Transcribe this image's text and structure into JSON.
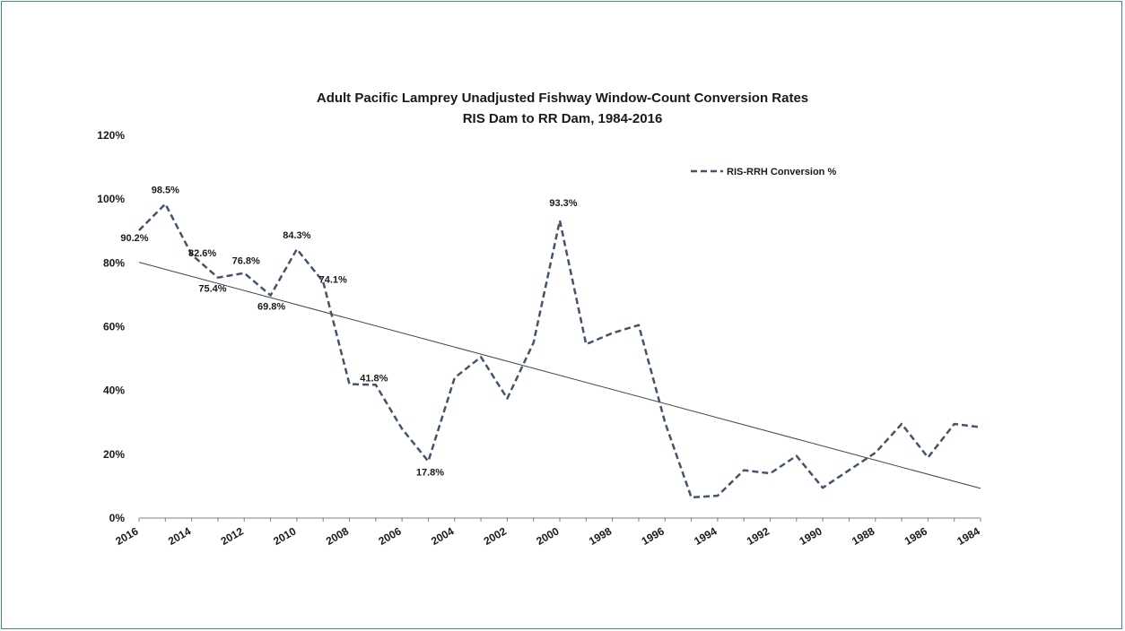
{
  "chart_data": {
    "type": "line",
    "title": "Adult Pacific Lamprey Unadjusted Fishway Window-Count Conversion Rates",
    "subtitle": "RIS Dam to RR Dam, 1984-2016",
    "x": [
      2016,
      2015,
      2014,
      2013,
      2012,
      2011,
      2010,
      2009,
      2008,
      2007,
      2006,
      2005,
      2004,
      2003,
      2002,
      2001,
      2000,
      1999,
      1998,
      1997,
      1996,
      1995,
      1994,
      1993,
      1992,
      1991,
      1990,
      1989,
      1988,
      1987,
      1986,
      1985,
      1984
    ],
    "x_tick_labels": [
      "2016",
      "2014",
      "2012",
      "2010",
      "2008",
      "2006",
      "2004",
      "2002",
      "2000",
      "1998",
      "1996",
      "1994",
      "1992",
      "1990",
      "1988",
      "1986",
      "1984"
    ],
    "x_reversed": true,
    "ylim": [
      0,
      120
    ],
    "y_tick_labels": [
      "0%",
      "20%",
      "40%",
      "60%",
      "80%",
      "100%",
      "120%"
    ],
    "series": [
      {
        "name": "RIS-RRH Conversion %",
        "style": "dashed",
        "color": "#44546a",
        "values": [
          90.2,
          98.5,
          82.6,
          75.4,
          76.8,
          69.8,
          84.3,
          74.1,
          42,
          41.8,
          28,
          17.8,
          44,
          50.5,
          37.5,
          55,
          93.3,
          54.5,
          58,
          60.5,
          30,
          6.5,
          7,
          15,
          14,
          19.5,
          9.5,
          15,
          20.5,
          29.5,
          19,
          29.5,
          28.5
        ]
      }
    ],
    "trendline": {
      "type": "linear",
      "color": "#444444",
      "start_value": 80.2,
      "end_value": 9.3
    },
    "data_labels": [
      {
        "x": 2016,
        "text": "90.2%"
      },
      {
        "x": 2015,
        "text": "98.5%"
      },
      {
        "x": 2014,
        "text": "82.6%"
      },
      {
        "x": 2013,
        "text": "75.4%"
      },
      {
        "x": 2012,
        "text": "76.8%"
      },
      {
        "x": 2011,
        "text": "69.8%"
      },
      {
        "x": 2010,
        "text": "84.3%"
      },
      {
        "x": 2009,
        "text": "74.1%"
      },
      {
        "x": 2007,
        "text": "41.8%"
      },
      {
        "x": 2005,
        "text": "17.8%"
      },
      {
        "x": 2000,
        "text": "93.3%"
      }
    ],
    "legend_position": "top-right",
    "grid": false
  }
}
